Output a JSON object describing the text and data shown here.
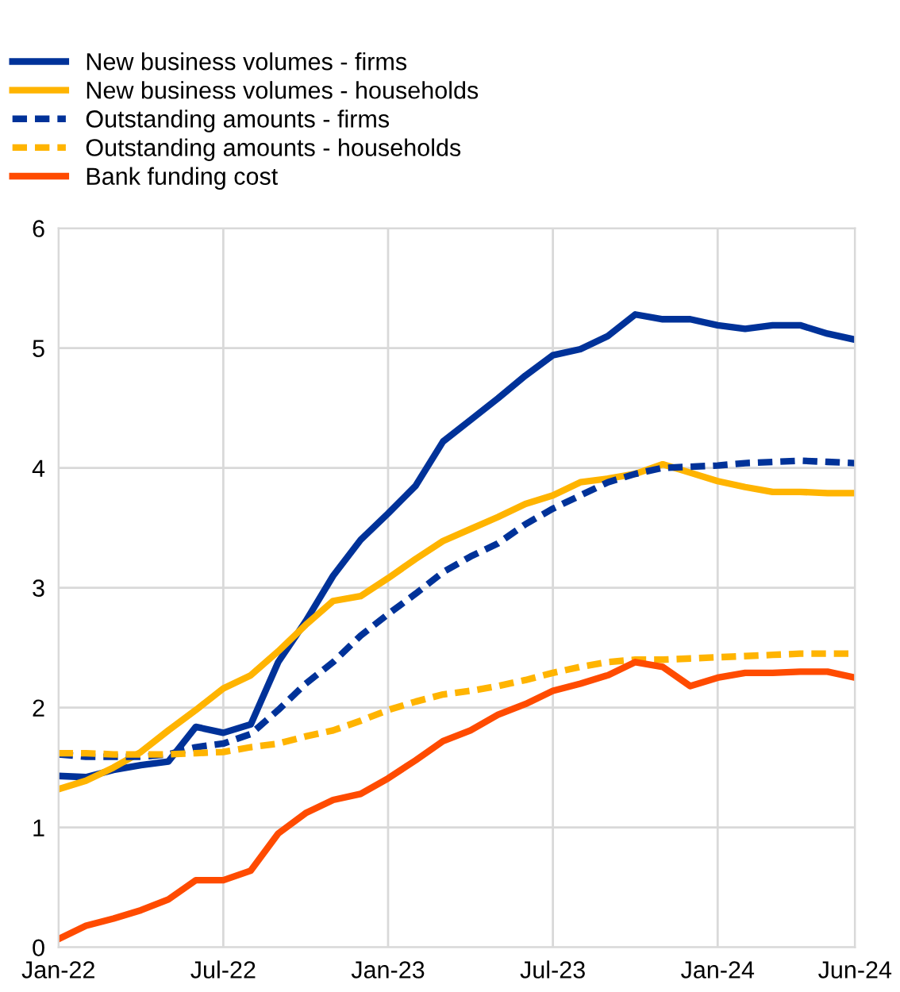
{
  "chart_data": {
    "type": "line",
    "legend": "top left",
    "grid": true,
    "x": [
      "2022-01",
      "2022-02",
      "2022-03",
      "2022-04",
      "2022-05",
      "2022-06",
      "2022-07",
      "2022-08",
      "2022-09",
      "2022-10",
      "2022-11",
      "2022-12",
      "2023-01",
      "2023-02",
      "2023-03",
      "2023-04",
      "2023-05",
      "2023-06",
      "2023-07",
      "2023-08",
      "2023-09",
      "2023-10",
      "2023-11",
      "2023-12",
      "2024-01",
      "2024-02",
      "2024-03",
      "2024-04",
      "2024-05",
      "2024-06"
    ],
    "xlim": [
      "2022-01",
      "2024-06"
    ],
    "xticks": [
      {
        "value": "2022-01",
        "label": "Jan-22"
      },
      {
        "value": "2022-07",
        "label": "Jul-22"
      },
      {
        "value": "2023-01",
        "label": "Jan-23"
      },
      {
        "value": "2023-07",
        "label": "Jul-23"
      },
      {
        "value": "2024-01",
        "label": "Jan-24"
      },
      {
        "value": "2024-06",
        "label": "Jun-24"
      }
    ],
    "ylim": [
      0,
      6
    ],
    "yticks": [
      0,
      1,
      2,
      3,
      4,
      5,
      6
    ],
    "series": [
      {
        "name": "New business volumes - firms",
        "color": "#003299",
        "line_style": "solid",
        "values": [
          1.43,
          1.42,
          1.48,
          1.52,
          1.55,
          1.84,
          1.79,
          1.86,
          2.38,
          2.72,
          3.1,
          3.4,
          3.62,
          3.85,
          4.22,
          4.4,
          4.58,
          4.77,
          4.94,
          4.99,
          5.1,
          5.28,
          5.24,
          5.24,
          5.19,
          5.16,
          5.19,
          5.19,
          5.12,
          5.07
        ]
      },
      {
        "name": "New business volumes - households",
        "color": "#ffb400",
        "line_style": "solid",
        "values": [
          1.32,
          1.39,
          1.5,
          1.63,
          1.81,
          1.98,
          2.16,
          2.27,
          2.47,
          2.69,
          2.89,
          2.93,
          3.08,
          3.24,
          3.39,
          3.49,
          3.59,
          3.7,
          3.77,
          3.88,
          3.91,
          3.95,
          4.03,
          3.96,
          3.89,
          3.84,
          3.8,
          3.8,
          3.79,
          3.79
        ]
      },
      {
        "name": "Outstanding amounts - firms",
        "color": "#003299",
        "line_style": "dashed",
        "values": [
          1.61,
          1.59,
          1.59,
          1.59,
          1.61,
          1.67,
          1.7,
          1.78,
          1.98,
          2.2,
          2.38,
          2.6,
          2.78,
          2.95,
          3.13,
          3.26,
          3.37,
          3.53,
          3.66,
          3.77,
          3.88,
          3.95,
          4.0,
          4.01,
          4.02,
          4.04,
          4.05,
          4.06,
          4.05,
          4.04
        ]
      },
      {
        "name": "Outstanding amounts - households",
        "color": "#ffb400",
        "line_style": "dashed",
        "values": [
          1.62,
          1.62,
          1.61,
          1.61,
          1.61,
          1.62,
          1.63,
          1.67,
          1.7,
          1.76,
          1.81,
          1.89,
          1.98,
          2.05,
          2.11,
          2.14,
          2.18,
          2.23,
          2.29,
          2.34,
          2.38,
          2.4,
          2.4,
          2.41,
          2.42,
          2.43,
          2.44,
          2.45,
          2.45,
          2.45
        ]
      },
      {
        "name": "Bank funding cost",
        "color": "#ff4b00",
        "line_style": "solid",
        "values": [
          0.07,
          0.18,
          0.24,
          0.31,
          0.4,
          0.56,
          0.56,
          0.64,
          0.95,
          1.12,
          1.23,
          1.28,
          1.41,
          1.56,
          1.72,
          1.81,
          1.94,
          2.03,
          2.14,
          2.2,
          2.27,
          2.38,
          2.34,
          2.18,
          2.25,
          2.29,
          2.29,
          2.3,
          2.3,
          2.25
        ]
      }
    ]
  }
}
